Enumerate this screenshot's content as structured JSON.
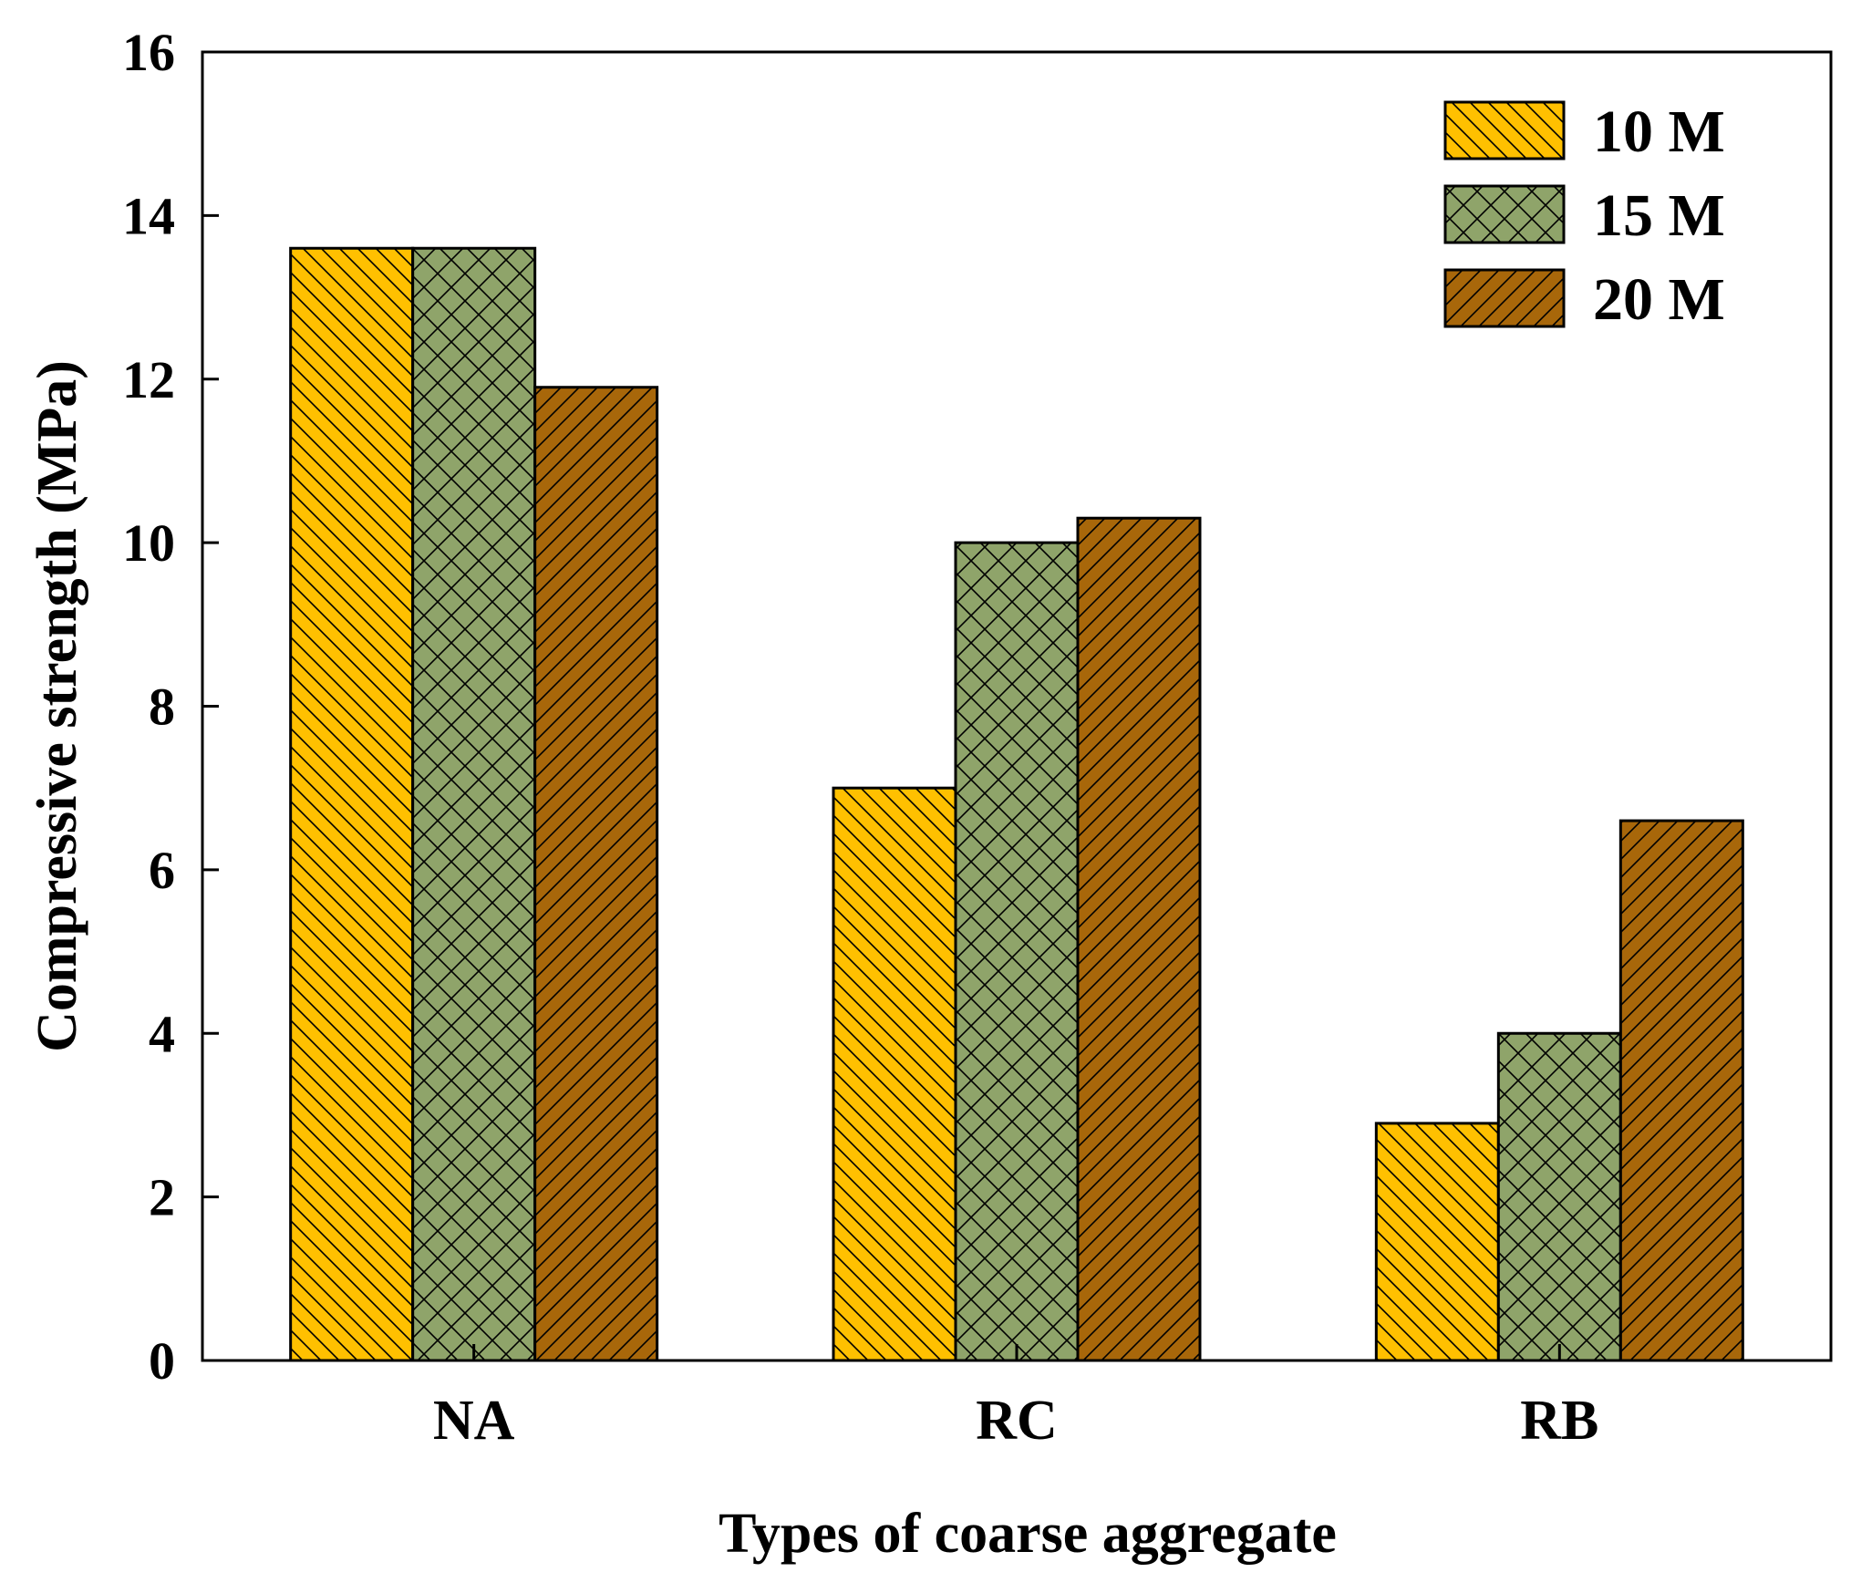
{
  "chart_data": {
    "type": "bar",
    "title": "",
    "xlabel": "Types of coarse aggregate",
    "ylabel": "Compressive strength (MPa)",
    "categories": [
      "NA",
      "RC",
      "RB"
    ],
    "ylim": [
      0,
      16
    ],
    "yticks": [
      0,
      2,
      4,
      6,
      8,
      10,
      12,
      14,
      16
    ],
    "grid": false,
    "legend_position": "top-right",
    "series": [
      {
        "name": "10 M",
        "values": [
          13.6,
          7.0,
          2.9
        ],
        "color": "#FFC000",
        "pattern": "back-diagonal"
      },
      {
        "name": "15 M",
        "values": [
          13.6,
          10.0,
          4.0
        ],
        "color": "#8FA46A",
        "pattern": "crosshatch"
      },
      {
        "name": "20 M",
        "values": [
          11.9,
          10.3,
          6.6
        ],
        "color": "#A8670A",
        "pattern": "forward-diagonal"
      }
    ]
  }
}
